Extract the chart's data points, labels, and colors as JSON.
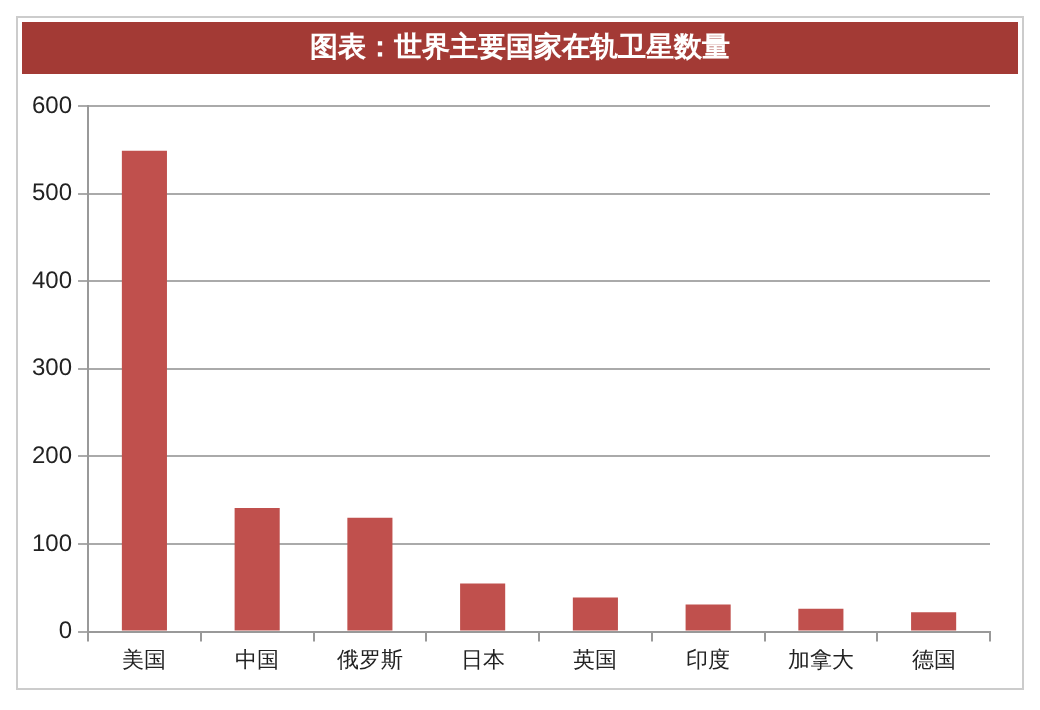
{
  "chart_data": {
    "type": "bar",
    "title": "图表：世界主要国家在轨卫星数量",
    "categories": [
      "美国",
      "中国",
      "俄罗斯",
      "日本",
      "英国",
      "印度",
      "加拿大",
      "德国"
    ],
    "values": [
      549,
      141,
      130,
      55,
      39,
      31,
      26,
      22
    ],
    "color": "#c0504d",
    "ylim": [
      0,
      600
    ],
    "yticks": [
      0,
      100,
      200,
      300,
      400,
      500,
      600
    ],
    "grid": "y"
  }
}
